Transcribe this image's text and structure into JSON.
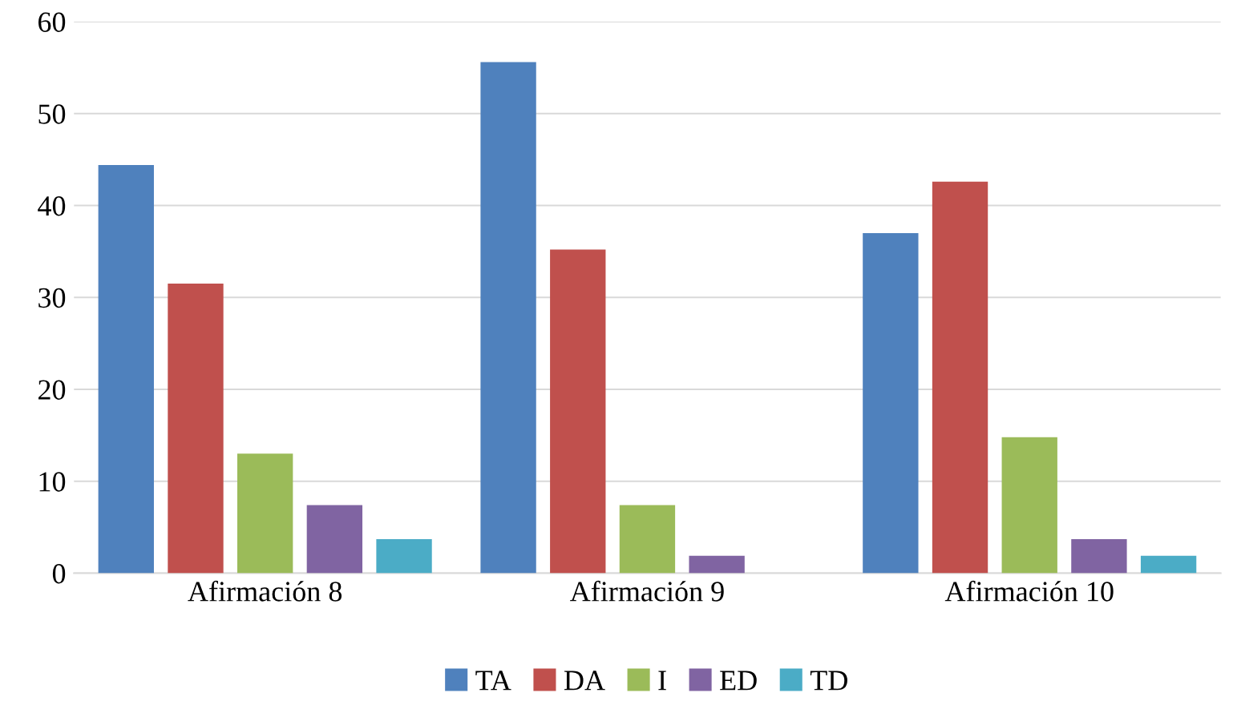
{
  "chart_data": {
    "type": "bar",
    "categories": [
      "Afirmación 8",
      "Afirmación 9",
      "Afirmación 10"
    ],
    "series": [
      {
        "name": "TA",
        "color": "#4f81bd",
        "values": [
          44.4,
          55.6,
          37.0
        ]
      },
      {
        "name": "DA",
        "color": "#c0504d",
        "values": [
          31.5,
          35.2,
          42.6
        ]
      },
      {
        "name": "I",
        "color": "#9bbb59",
        "values": [
          13.0,
          7.4,
          14.8
        ]
      },
      {
        "name": "ED",
        "color": "#8064a2",
        "values": [
          7.4,
          1.9,
          3.7
        ]
      },
      {
        "name": "TD",
        "color": "#4bacc6",
        "values": [
          3.7,
          0,
          1.9
        ]
      }
    ],
    "ylim": [
      0,
      60
    ],
    "yticks": [
      0,
      10,
      20,
      30,
      40,
      50,
      60
    ],
    "grid": "y",
    "legend": "bottom"
  }
}
